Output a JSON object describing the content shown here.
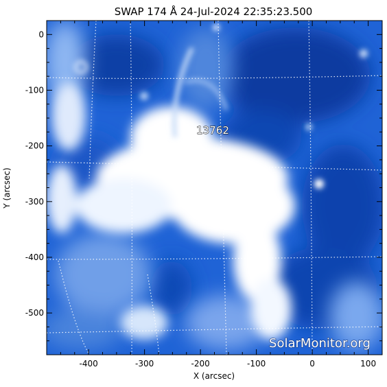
{
  "title": "SWAP 174 Å 24-Jul-2024 22:35:23.500",
  "xlabel": "X (arcsec)",
  "ylabel": "Y (arcsec)",
  "region_label": "13762",
  "watermark": "SolarMonitor.org",
  "x_ticks": [
    -400,
    -300,
    -200,
    -100,
    0,
    100
  ],
  "y_ticks": [
    0,
    -100,
    -200,
    -300,
    -400,
    -500
  ],
  "xlim": [
    -475,
    125
  ],
  "ylim": [
    -575,
    25
  ],
  "colors": {
    "background_blue": "#1f63d6",
    "dark_blue": "#0a3fa8",
    "bright": "#ffffff",
    "grid": "#ffffff"
  }
}
